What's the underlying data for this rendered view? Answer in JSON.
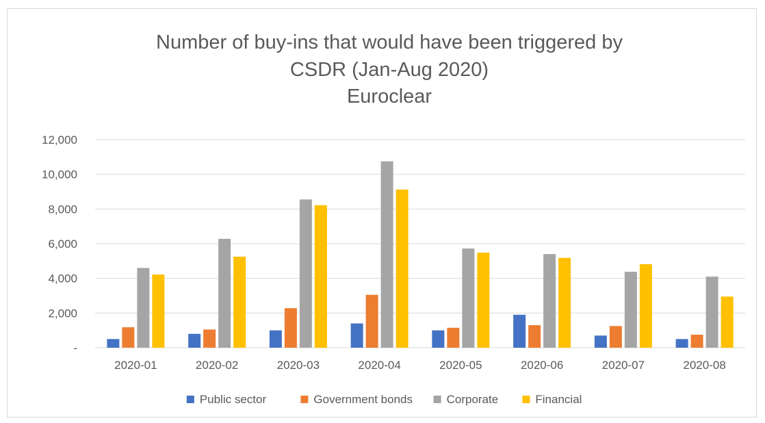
{
  "chart_data": {
    "type": "bar",
    "title_lines": [
      "Number of buy-ins that would have been triggered by",
      "CSDR (Jan-Aug 2020)",
      "Euroclear"
    ],
    "xlabel": "",
    "ylabel": "",
    "categories": [
      "2020-01",
      "2020-02",
      "2020-03",
      "2020-04",
      "2020-05",
      "2020-06",
      "2020-07",
      "2020-08"
    ],
    "series": [
      {
        "name": "Public sector",
        "color": "#4472C4",
        "values": [
          500,
          800,
          1000,
          1400,
          1000,
          1900,
          700,
          500
        ]
      },
      {
        "name": "Government bonds",
        "color": "#ED7D31",
        "values": [
          1180,
          1050,
          2280,
          3050,
          1150,
          1300,
          1250,
          750
        ]
      },
      {
        "name": "Corporate",
        "color": "#A5A5A5",
        "values": [
          4600,
          6280,
          8550,
          10750,
          5720,
          5400,
          4380,
          4100
        ]
      },
      {
        "name": "Financial",
        "color": "#FFC000",
        "values": [
          4220,
          5250,
          8220,
          9120,
          5480,
          5180,
          4820,
          2950
        ]
      }
    ],
    "ylim": [
      0,
      12000
    ],
    "yticks": [
      0,
      2000,
      4000,
      6000,
      8000,
      10000,
      12000
    ],
    "ytick_labels": [
      "-",
      "2,000",
      "4,000",
      "6,000",
      "8,000",
      "10,000",
      "12,000"
    ],
    "grid": true,
    "legend_position": "bottom"
  }
}
